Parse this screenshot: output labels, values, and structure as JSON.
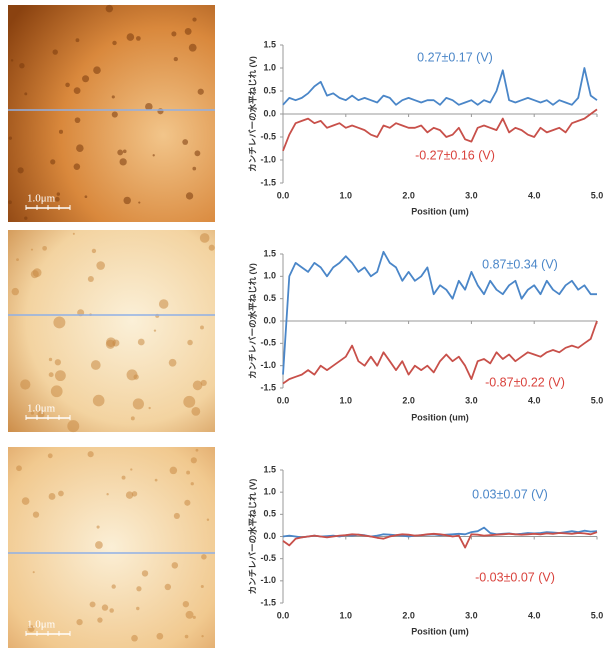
{
  "images": [
    {
      "scale_bar": "1.0μm"
    },
    {
      "scale_bar": "1.0μm"
    },
    {
      "scale_bar": "1.0μm"
    }
  ],
  "chart_data": [
    {
      "type": "line",
      "y_label": "カンチレバーの水平ねじれ (V)",
      "x_label": "Position (um)",
      "x": [
        0,
        0.1,
        0.2,
        0.3,
        0.4,
        0.5,
        0.6,
        0.7,
        0.8,
        0.9,
        1,
        1.1,
        1.2,
        1.3,
        1.4,
        1.5,
        1.6,
        1.7,
        1.8,
        1.9,
        2,
        2.1,
        2.2,
        2.3,
        2.4,
        2.5,
        2.6,
        2.7,
        2.8,
        2.9,
        3,
        3.1,
        3.2,
        3.3,
        3.4,
        3.5,
        3.6,
        3.7,
        3.8,
        3.9,
        4,
        4.1,
        4.2,
        4.3,
        4.4,
        4.5,
        4.6,
        4.7,
        4.8,
        4.9,
        5
      ],
      "series": [
        {
          "color": "#4a86c8",
          "values": [
            0.2,
            0.35,
            0.3,
            0.35,
            0.45,
            0.6,
            0.7,
            0.4,
            0.45,
            0.35,
            0.3,
            0.4,
            0.3,
            0.35,
            0.3,
            0.25,
            0.4,
            0.35,
            0.2,
            0.3,
            0.35,
            0.3,
            0.25,
            0.3,
            0.3,
            0.2,
            0.35,
            0.3,
            0.2,
            0.25,
            0.3,
            0.2,
            0.3,
            0.25,
            0.5,
            0.95,
            0.3,
            0.25,
            0.3,
            0.35,
            0.3,
            0.25,
            0.3,
            0.2,
            0.3,
            0.25,
            0.2,
            0.35,
            1.0,
            0.4,
            0.3
          ]
        },
        {
          "color": "#c8504a",
          "values": [
            -0.8,
            -0.45,
            -0.2,
            -0.15,
            -0.1,
            -0.2,
            -0.15,
            -0.3,
            -0.25,
            -0.2,
            -0.3,
            -0.25,
            -0.3,
            -0.35,
            -0.45,
            -0.5,
            -0.25,
            -0.3,
            -0.2,
            -0.25,
            -0.3,
            -0.3,
            -0.25,
            -0.4,
            -0.3,
            -0.35,
            -0.5,
            -0.45,
            -0.3,
            -0.55,
            -0.6,
            -0.3,
            -0.25,
            -0.3,
            -0.35,
            -0.1,
            -0.4,
            -0.3,
            -0.35,
            -0.45,
            -0.5,
            -0.3,
            -0.4,
            -0.35,
            -0.3,
            -0.4,
            -0.2,
            -0.15,
            -0.1,
            0.0,
            0.1
          ]
        }
      ],
      "annotations": [
        {
          "text": "0.27±0.17 (V)",
          "color": "#4a86c8"
        },
        {
          "text": "-0.27±0.16 (V)",
          "color": "#d9423c"
        }
      ],
      "xlim": [
        0,
        5
      ],
      "xticks": [
        {
          "value": 0,
          "label": "0.0"
        },
        {
          "value": 1,
          "label": "1.0"
        },
        {
          "value": 2,
          "label": "2.0"
        },
        {
          "value": 3,
          "label": "3.0"
        },
        {
          "value": 4,
          "label": "4.0"
        },
        {
          "value": 5,
          "label": "5.0"
        }
      ],
      "ylim": [
        -1.5,
        1.5
      ],
      "yticks": [
        1.5,
        {
          "value": 1,
          "label": "1.0"
        },
        0.5,
        {
          "value": 0,
          "label": "0.0"
        },
        -0.5,
        {
          "value": -1,
          "label": "-1.0"
        },
        -1.5
      ]
    },
    {
      "type": "line",
      "y_label": "カンチレバーの水平ねじれ (V)",
      "x_label": "Position (um)",
      "x": [
        0,
        0.1,
        0.2,
        0.3,
        0.4,
        0.5,
        0.6,
        0.7,
        0.8,
        0.9,
        1,
        1.1,
        1.2,
        1.3,
        1.4,
        1.5,
        1.6,
        1.7,
        1.8,
        1.9,
        2,
        2.1,
        2.2,
        2.3,
        2.4,
        2.5,
        2.6,
        2.7,
        2.8,
        2.9,
        3,
        3.1,
        3.2,
        3.3,
        3.4,
        3.5,
        3.6,
        3.7,
        3.8,
        3.9,
        4,
        4.1,
        4.2,
        4.3,
        4.4,
        4.5,
        4.6,
        4.7,
        4.8,
        4.9,
        5
      ],
      "series": [
        {
          "color": "#4a86c8",
          "values": [
            -1.2,
            1.0,
            1.3,
            1.2,
            1.1,
            1.3,
            1.2,
            1.0,
            1.2,
            1.3,
            1.45,
            1.3,
            1.1,
            1.2,
            1.0,
            1.1,
            1.55,
            1.3,
            1.2,
            0.9,
            1.1,
            0.9,
            1.0,
            1.2,
            0.6,
            0.8,
            0.7,
            0.5,
            0.9,
            0.7,
            1.1,
            0.8,
            0.6,
            0.9,
            0.7,
            0.6,
            0.8,
            0.9,
            0.5,
            0.7,
            0.8,
            0.6,
            0.9,
            0.7,
            0.6,
            0.8,
            0.9,
            0.7,
            0.8,
            0.6,
            0.6
          ]
        },
        {
          "color": "#c8504a",
          "values": [
            -1.4,
            -1.3,
            -1.25,
            -1.2,
            -1.1,
            -1.2,
            -1.0,
            -1.1,
            -1.0,
            -0.9,
            -0.8,
            -0.55,
            -0.9,
            -1.0,
            -0.8,
            -1.0,
            -0.7,
            -0.9,
            -1.1,
            -0.9,
            -1.2,
            -1.0,
            -1.1,
            -1.0,
            -1.15,
            -0.9,
            -0.75,
            -0.9,
            -0.8,
            -1.0,
            -1.3,
            -0.9,
            -0.85,
            -0.95,
            -0.7,
            -0.85,
            -0.75,
            -0.9,
            -0.8,
            -0.7,
            -0.75,
            -0.8,
            -0.7,
            -0.65,
            -0.7,
            -0.6,
            -0.55,
            -0.6,
            -0.5,
            -0.4,
            0.0
          ]
        }
      ],
      "annotations": [
        {
          "text": "0.87±0.34 (V)",
          "color": "#4a86c8"
        },
        {
          "text": "-0.87±0.22 (V)",
          "color": "#d9423c"
        }
      ],
      "xlim": [
        0,
        5
      ],
      "xticks": [
        {
          "value": 0,
          "label": "0.0"
        },
        {
          "value": 1,
          "label": "1.0"
        },
        {
          "value": 2,
          "label": "2.0"
        },
        {
          "value": 3,
          "label": "3.0"
        },
        {
          "value": 4,
          "label": "4.0"
        },
        {
          "value": 5,
          "label": "5.0"
        }
      ],
      "ylim": [
        -1.5,
        1.5
      ],
      "yticks": [
        1.5,
        {
          "value": 1,
          "label": "1.0"
        },
        0.5,
        {
          "value": 0,
          "label": "0.0"
        },
        -0.5,
        {
          "value": -1,
          "label": "-1.0"
        },
        -1.5
      ]
    },
    {
      "type": "line",
      "y_label": "カンチレバーの水平ねじれ (V)",
      "x_label": "Position (um)",
      "x": [
        0,
        0.1,
        0.2,
        0.3,
        0.4,
        0.5,
        0.6,
        0.7,
        0.8,
        0.9,
        1,
        1.1,
        1.2,
        1.3,
        1.4,
        1.5,
        1.6,
        1.7,
        1.8,
        1.9,
        2,
        2.1,
        2.2,
        2.3,
        2.4,
        2.5,
        2.6,
        2.7,
        2.8,
        2.9,
        3,
        3.1,
        3.2,
        3.3,
        3.4,
        3.5,
        3.6,
        3.7,
        3.8,
        3.9,
        4,
        4.1,
        4.2,
        4.3,
        4.4,
        4.5,
        4.6,
        4.7,
        4.8,
        4.9,
        5
      ],
      "series": [
        {
          "color": "#4a86c8",
          "values": [
            0.0,
            0.02,
            0.0,
            -0.02,
            0.0,
            0.02,
            0.0,
            0.01,
            0.02,
            0.0,
            0.03,
            0.02,
            0.04,
            0.03,
            0.0,
            0.02,
            0.05,
            0.04,
            0.03,
            0.02,
            0.0,
            0.02,
            0.03,
            0.04,
            0.05,
            0.03,
            0.04,
            0.05,
            0.06,
            0.05,
            0.1,
            0.12,
            0.2,
            0.08,
            0.05,
            0.06,
            0.07,
            0.05,
            0.06,
            0.08,
            0.07,
            0.08,
            0.1,
            0.09,
            0.08,
            0.1,
            0.12,
            0.1,
            0.13,
            0.11,
            0.12
          ]
        },
        {
          "color": "#c8504a",
          "values": [
            -0.1,
            -0.2,
            -0.05,
            -0.02,
            0.0,
            0.02,
            0.0,
            -0.02,
            0.0,
            0.02,
            0.03,
            0.05,
            0.04,
            0.02,
            0.0,
            -0.03,
            -0.05,
            0.0,
            0.03,
            0.05,
            0.04,
            0.02,
            0.03,
            0.05,
            0.06,
            0.05,
            0.03,
            0.0,
            0.02,
            -0.25,
            0.05,
            0.04,
            0.02,
            0.03,
            0.04,
            0.05,
            0.06,
            0.05,
            0.04,
            0.05,
            0.06,
            0.05,
            0.07,
            0.06,
            0.08,
            0.07,
            0.06,
            0.08,
            0.07,
            0.05,
            0.1
          ]
        }
      ],
      "annotations": [
        {
          "text": "0.03±0.07 (V)",
          "color": "#4a86c8"
        },
        {
          "text": "-0.03±0.07 (V)",
          "color": "#d9423c"
        }
      ],
      "xlim": [
        0,
        5
      ],
      "xticks": [
        {
          "value": 0,
          "label": "0.0"
        },
        {
          "value": 1,
          "label": "1.0"
        },
        {
          "value": 2,
          "label": "2.0"
        },
        {
          "value": 3,
          "label": "3.0"
        },
        {
          "value": 4,
          "label": "4.0"
        },
        {
          "value": 5,
          "label": "5.0"
        }
      ],
      "ylim": [
        -1.5,
        1.5
      ],
      "yticks": [
        1.5,
        {
          "value": 1,
          "label": "1.0"
        },
        0.5,
        {
          "value": 0,
          "label": "0.0"
        },
        -0.5,
        {
          "value": -1,
          "label": "-1.0"
        },
        -1.5
      ]
    }
  ]
}
